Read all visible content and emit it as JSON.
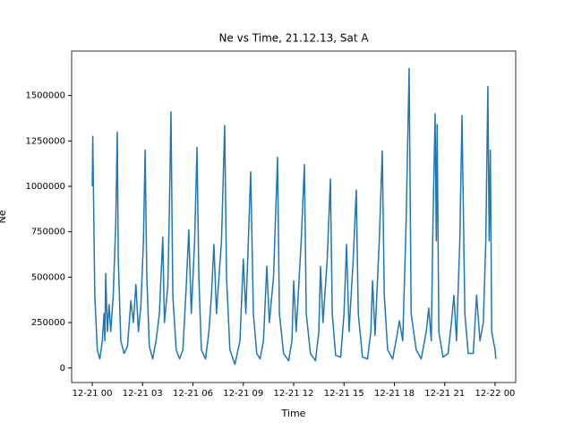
{
  "chart_data": {
    "type": "line",
    "title": "Ne vs Time, 21.12.13, Sat A",
    "xlabel": "Time",
    "ylabel": "Ne",
    "xlim": [
      -1.23,
      25.23
    ],
    "xticks": [
      {
        "value": 0,
        "label": "12-21 00"
      },
      {
        "value": 3,
        "label": "12-21 03"
      },
      {
        "value": 6,
        "label": "12-21 06"
      },
      {
        "value": 9,
        "label": "12-21 09"
      },
      {
        "value": 12,
        "label": "12-21 12"
      },
      {
        "value": 15,
        "label": "12-21 15"
      },
      {
        "value": 18,
        "label": "12-21 18"
      },
      {
        "value": 21,
        "label": "12-21 21"
      },
      {
        "value": 24,
        "label": "12-22 00"
      }
    ],
    "ylim": [
      -80000,
      1745000
    ],
    "yticks": [
      0,
      250000,
      500000,
      750000,
      1000000,
      1250000,
      1500000
    ],
    "series": [
      {
        "color": "#1f77b4",
        "x": [
          0,
          0.03,
          0.15,
          0.3,
          0.45,
          0.6,
          0.7,
          0.75,
          0.8,
          0.9,
          1.0,
          1.1,
          1.25,
          1.4,
          1.49,
          1.55,
          1.7,
          1.9,
          2.1,
          2.3,
          2.45,
          2.6,
          2.75,
          2.9,
          3.05,
          3.15,
          3.25,
          3.4,
          3.6,
          3.8,
          4.0,
          4.2,
          4.3,
          4.5,
          4.6,
          4.69,
          4.8,
          5.0,
          5.2,
          5.4,
          5.6,
          5.75,
          5.9,
          6.1,
          6.24,
          6.35,
          6.5,
          6.75,
          6.95,
          7.1,
          7.25,
          7.4,
          7.7,
          7.89,
          8.0,
          8.2,
          8.5,
          8.8,
          9.0,
          9.15,
          9.3,
          9.44,
          9.6,
          9.8,
          10.0,
          10.2,
          10.4,
          10.55,
          10.8,
          11.04,
          11.15,
          11.4,
          11.7,
          11.9,
          12.0,
          12.15,
          12.45,
          12.64,
          12.75,
          13.0,
          13.3,
          13.5,
          13.6,
          13.75,
          14.0,
          14.19,
          14.3,
          14.5,
          14.8,
          15.0,
          15.15,
          15.3,
          15.55,
          15.73,
          15.85,
          16.1,
          16.4,
          16.6,
          16.7,
          16.85,
          17.1,
          17.28,
          17.4,
          17.6,
          17.9,
          18.1,
          18.3,
          18.5,
          18.7,
          18.88,
          19.0,
          19.3,
          19.6,
          19.9,
          20.05,
          20.2,
          20.3,
          20.43,
          20.5,
          20.55,
          20.65,
          20.9,
          21.2,
          21.4,
          21.55,
          21.7,
          21.9,
          22.03,
          22.2,
          22.4,
          22.7,
          22.9,
          23.1,
          23.3,
          23.45,
          23.57,
          23.65,
          23.72,
          23.8,
          24.0,
          24.05
        ],
        "values": [
          1000000,
          1275000,
          400000,
          100000,
          50000,
          150000,
          300000,
          150000,
          520000,
          200000,
          350000,
          200000,
          400000,
          800000,
          1300000,
          600000,
          150000,
          80000,
          120000,
          370000,
          250000,
          460000,
          200000,
          350000,
          700000,
          1200000,
          500000,
          120000,
          50000,
          150000,
          300000,
          720000,
          250000,
          450000,
          900000,
          1410000,
          400000,
          100000,
          50000,
          100000,
          450000,
          760000,
          300000,
          700000,
          1215000,
          500000,
          100000,
          50000,
          200000,
          400000,
          680000,
          300000,
          700000,
          1335000,
          500000,
          100000,
          20000,
          150000,
          600000,
          300000,
          700000,
          1080000,
          300000,
          80000,
          50000,
          150000,
          560000,
          250000,
          500000,
          1160000,
          300000,
          80000,
          40000,
          150000,
          480000,
          200000,
          700000,
          1120000,
          300000,
          80000,
          40000,
          200000,
          560000,
          250000,
          600000,
          1040000,
          300000,
          70000,
          60000,
          300000,
          680000,
          200000,
          600000,
          980000,
          300000,
          60000,
          50000,
          200000,
          480000,
          180000,
          700000,
          1195000,
          400000,
          100000,
          50000,
          150000,
          260000,
          150000,
          800000,
          1650000,
          300000,
          100000,
          50000,
          200000,
          330000,
          150000,
          800000,
          1400000,
          700000,
          1340000,
          200000,
          60000,
          80000,
          250000,
          400000,
          150000,
          700000,
          1390000,
          300000,
          80000,
          80000,
          400000,
          150000,
          250000,
          700000,
          1550000,
          700000,
          1200000,
          200000,
          100000,
          50000
        ]
      }
    ]
  }
}
